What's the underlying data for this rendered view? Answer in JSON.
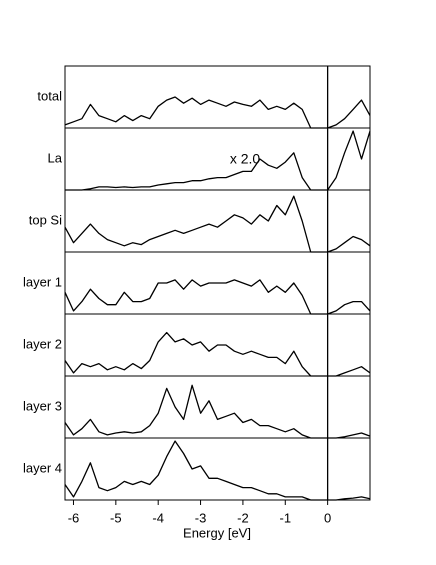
{
  "chart_data": {
    "type": "line",
    "panels": true,
    "x_label": "Energy [eV]",
    "x": [
      -6.2,
      -6.0,
      -5.8,
      -5.6,
      -5.4,
      -5.2,
      -5.0,
      -4.8,
      -4.6,
      -4.4,
      -4.2,
      -4.0,
      -3.8,
      -3.6,
      -3.4,
      -3.2,
      -3.0,
      -2.8,
      -2.6,
      -2.4,
      -2.2,
      -2.0,
      -1.8,
      -1.6,
      -1.4,
      -1.2,
      -1.0,
      -0.8,
      -0.6,
      -0.4,
      -0.2,
      0,
      0.2,
      0.4,
      0.6,
      0.8,
      1.0
    ],
    "xlim": [
      -6.2,
      1.0
    ],
    "xticks": [
      -6,
      -5,
      -4,
      -3,
      -2,
      -1,
      0
    ],
    "ylim": [
      0,
      1
    ],
    "reference_line_x": 0,
    "color": "#000000",
    "series": [
      {
        "name": "total",
        "values": [
          0.05,
          0.1,
          0.15,
          0.38,
          0.2,
          0.15,
          0.1,
          0.2,
          0.12,
          0.2,
          0.15,
          0.35,
          0.45,
          0.5,
          0.4,
          0.48,
          0.38,
          0.45,
          0.4,
          0.35,
          0.42,
          0.38,
          0.35,
          0.45,
          0.3,
          0.35,
          0.3,
          0.4,
          0.3,
          0,
          0,
          0,
          0.05,
          0.15,
          0.3,
          0.45,
          0.2
        ]
      },
      {
        "name": "La",
        "values": [
          0,
          0,
          0,
          0.02,
          0.05,
          0.05,
          0.04,
          0.05,
          0.04,
          0.05,
          0.05,
          0.08,
          0.1,
          0.12,
          0.12,
          0.15,
          0.15,
          0.18,
          0.2,
          0.2,
          0.25,
          0.3,
          0.3,
          0.5,
          0.4,
          0.35,
          0.45,
          0.6,
          0.2,
          0,
          0,
          0,
          0.2,
          0.6,
          0.95,
          0.5,
          0.95
        ]
      },
      {
        "name": "top Si",
        "values": [
          0.4,
          0.15,
          0.3,
          0.45,
          0.3,
          0.2,
          0.15,
          0.1,
          0.15,
          0.12,
          0.2,
          0.25,
          0.3,
          0.35,
          0.3,
          0.35,
          0.4,
          0.45,
          0.4,
          0.5,
          0.6,
          0.55,
          0.45,
          0.6,
          0.5,
          0.75,
          0.6,
          0.9,
          0.5,
          0,
          0,
          0,
          0.05,
          0.15,
          0.25,
          0.2,
          0.1
        ]
      },
      {
        "name": "layer 1",
        "values": [
          0.35,
          0.05,
          0.2,
          0.4,
          0.25,
          0.15,
          0.15,
          0.35,
          0.2,
          0.2,
          0.25,
          0.5,
          0.5,
          0.55,
          0.4,
          0.55,
          0.45,
          0.5,
          0.5,
          0.5,
          0.55,
          0.5,
          0.45,
          0.55,
          0.35,
          0.45,
          0.35,
          0.5,
          0.3,
          0,
          0,
          0,
          0.05,
          0.15,
          0.2,
          0.2,
          0.05
        ]
      },
      {
        "name": "layer 2",
        "values": [
          0.25,
          0.05,
          0.2,
          0.15,
          0.2,
          0.1,
          0.15,
          0.1,
          0.2,
          0.12,
          0.25,
          0.55,
          0.7,
          0.55,
          0.6,
          0.5,
          0.55,
          0.4,
          0.5,
          0.5,
          0.4,
          0.35,
          0.4,
          0.35,
          0.3,
          0.3,
          0.2,
          0.4,
          0.15,
          0,
          0,
          0,
          0,
          0.05,
          0.1,
          0.15,
          0.05
        ]
      },
      {
        "name": "layer 3",
        "values": [
          0.25,
          0.05,
          0.15,
          0.3,
          0.1,
          0.05,
          0.08,
          0.1,
          0.08,
          0.1,
          0.2,
          0.4,
          0.8,
          0.5,
          0.3,
          0.85,
          0.4,
          0.6,
          0.3,
          0.35,
          0.4,
          0.25,
          0.3,
          0.2,
          0.2,
          0.15,
          0.1,
          0.15,
          0.05,
          0,
          0,
          0,
          0,
          0.02,
          0.05,
          0.08,
          0.03
        ]
      },
      {
        "name": "layer 4",
        "values": [
          0.25,
          0.05,
          0.3,
          0.6,
          0.2,
          0.15,
          0.2,
          0.3,
          0.25,
          0.3,
          0.25,
          0.4,
          0.7,
          0.95,
          0.75,
          0.5,
          0.55,
          0.35,
          0.35,
          0.3,
          0.25,
          0.2,
          0.2,
          0.15,
          0.1,
          0.1,
          0.05,
          0.05,
          0.05,
          0,
          0,
          0,
          0,
          0.02,
          0.03,
          0.05,
          0.02
        ]
      }
    ],
    "annotations": [
      {
        "text": "x 2.0",
        "series": 1
      }
    ]
  }
}
